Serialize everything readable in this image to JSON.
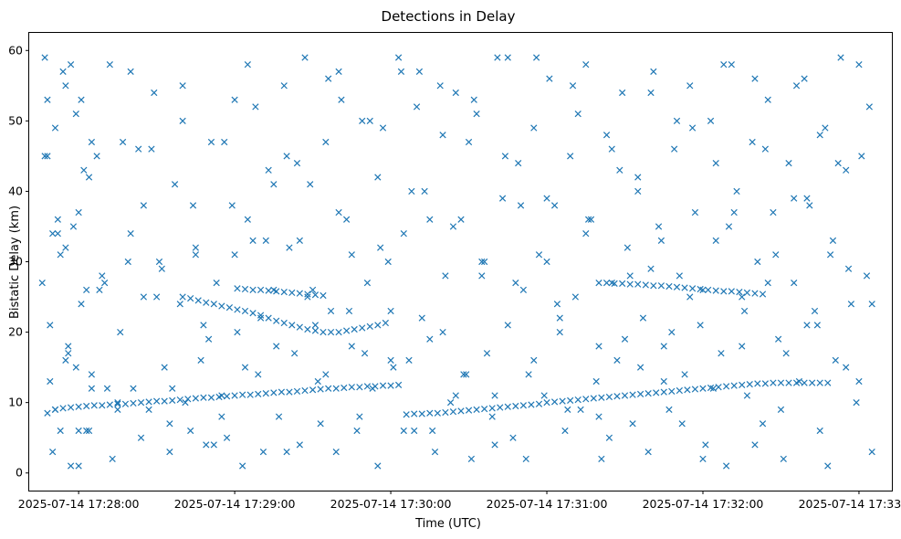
{
  "chart_data": {
    "type": "scatter",
    "title": "Detections in Delay",
    "xlabel": "Time (UTC)",
    "ylabel": "Bistatic Delay (km)",
    "marker": "x",
    "color": "#1f77b4",
    "x_unit": "seconds after 2025-07-14 17:28:00 UTC",
    "xlim": [
      -19,
      313
    ],
    "ylim": [
      -2.5,
      62.5
    ],
    "x_ticks": [
      {
        "value": 0,
        "label": "2025-07-14 17:28:00"
      },
      {
        "value": 60,
        "label": "2025-07-14 17:29:00"
      },
      {
        "value": 120,
        "label": "2025-07-14 17:30:00"
      },
      {
        "value": 180,
        "label": "2025-07-14 17:31:00"
      },
      {
        "value": 240,
        "label": "2025-07-14 17:32:00"
      },
      {
        "value": 300,
        "label": "2025-07-14 17:33:00"
      }
    ],
    "y_ticks": [
      {
        "value": 0,
        "label": "0"
      },
      {
        "value": 10,
        "label": "10"
      },
      {
        "value": 20,
        "label": "20"
      },
      {
        "value": 30,
        "label": "30"
      },
      {
        "value": 40,
        "label": "40"
      },
      {
        "value": 50,
        "label": "50"
      },
      {
        "value": 60,
        "label": "60"
      }
    ],
    "track_series": [
      {
        "name": "low-delay track segment 1",
        "x": [
          -12,
          -9,
          -6,
          -3,
          0,
          3,
          6,
          9,
          12,
          15,
          18,
          21,
          24,
          27,
          30,
          33,
          36,
          39,
          42,
          45,
          48,
          51,
          54,
          57,
          60,
          63,
          66,
          69,
          72,
          75,
          78,
          81,
          84,
          87,
          90,
          93,
          96,
          99,
          102,
          105,
          108,
          111,
          114,
          117,
          120,
          123,
          126,
          129,
          132,
          135,
          138,
          141,
          144,
          147,
          150,
          153,
          156,
          159,
          162,
          165,
          168,
          171,
          174,
          177,
          180,
          183,
          186,
          189,
          192,
          195,
          198,
          201,
          204,
          207,
          210,
          213,
          216,
          219,
          222,
          225,
          228,
          231,
          234,
          237,
          240,
          243,
          246,
          249,
          252,
          255,
          258,
          261,
          264,
          267,
          270,
          273,
          276,
          279,
          282,
          285,
          288
        ],
        "y": [
          8.5,
          9.0,
          9.2,
          9.3,
          9.4,
          9.5,
          9.6,
          9.6,
          9.7,
          9.8,
          9.8,
          9.9,
          10.0,
          10.1,
          10.2,
          10.2,
          10.3,
          10.4,
          10.5,
          10.6,
          10.7,
          10.7,
          10.8,
          10.9,
          11.0,
          11.1,
          11.1,
          11.2,
          11.3,
          11.4,
          11.5,
          11.5,
          11.6,
          11.7,
          11.8,
          11.9,
          12.0,
          12.0,
          12.1,
          12.2,
          12.2,
          12.3,
          12.3,
          12.4,
          12.4,
          12.5,
          8.3,
          8.4,
          8.4,
          8.5,
          8.5,
          8.6,
          8.7,
          8.8,
          8.9,
          9.0,
          9.1,
          9.2,
          9.3,
          9.4,
          9.5,
          9.6,
          9.7,
          9.8,
          10.0,
          10.1,
          10.2,
          10.3,
          10.4,
          10.5,
          10.6,
          10.7,
          10.8,
          10.9,
          11.0,
          11.1,
          11.2,
          11.3,
          11.4,
          11.5,
          11.6,
          11.7,
          11.8,
          11.9,
          12.0,
          12.1,
          12.2,
          12.3,
          12.4,
          12.5,
          12.6,
          12.7,
          12.7,
          12.8,
          12.8,
          12.8,
          12.8,
          12.8,
          12.8,
          12.8,
          12.8
        ]
      },
      {
        "name": "upper track",
        "x": [
          40,
          43,
          46,
          49,
          52,
          55,
          58,
          61,
          64,
          67,
          70,
          73,
          76,
          79,
          82,
          85,
          88,
          91,
          94,
          97,
          100,
          103,
          106,
          109,
          112,
          115,
          118
        ],
        "y": [
          25.0,
          24.8,
          24.5,
          24.2,
          24.0,
          23.7,
          23.5,
          23.2,
          23.0,
          22.7,
          22.4,
          22.0,
          21.6,
          21.3,
          21.0,
          20.7,
          20.4,
          20.2,
          20.0,
          20.0,
          20.0,
          20.2,
          20.4,
          20.6,
          20.8,
          21.0,
          21.3
        ]
      },
      {
        "name": "mid track",
        "x": [
          61,
          64,
          67,
          70,
          73,
          76,
          79,
          82,
          85,
          88,
          91,
          94,
          200,
          203,
          206,
          209,
          212,
          215,
          218,
          221,
          224,
          227,
          230,
          233,
          236,
          239,
          242,
          245,
          248,
          251,
          254,
          257,
          260,
          263
        ],
        "y": [
          26.2,
          26.1,
          26.0,
          26.0,
          25.9,
          25.8,
          25.7,
          25.6,
          25.5,
          25.4,
          25.3,
          25.2,
          27.0,
          27.0,
          26.9,
          26.9,
          26.8,
          26.8,
          26.7,
          26.6,
          26.6,
          26.5,
          26.4,
          26.3,
          26.2,
          26.1,
          26.0,
          25.9,
          25.8,
          25.8,
          25.7,
          25.6,
          25.5,
          25.4
        ]
      }
    ],
    "scatter_x": [
      -14,
      -13,
      -12,
      -11,
      -10,
      -9,
      -8,
      -7,
      -6,
      -5,
      -4,
      -3,
      -2,
      -1,
      0,
      1,
      2,
      3,
      4,
      5,
      -13,
      -11,
      -9,
      -7,
      -5,
      -3,
      -1,
      1,
      3,
      5,
      7,
      9,
      11,
      13,
      15,
      17,
      19,
      21,
      23,
      25,
      27,
      29,
      31,
      33,
      35,
      37,
      39,
      41,
      43,
      45,
      47,
      49,
      51,
      53,
      55,
      57,
      59,
      61,
      63,
      65,
      67,
      69,
      71,
      73,
      75,
      77,
      79,
      81,
      83,
      85,
      87,
      89,
      91,
      93,
      95,
      97,
      99,
      101,
      103,
      105,
      107,
      109,
      111,
      113,
      115,
      117,
      119,
      121,
      123,
      125,
      127,
      129,
      131,
      133,
      135,
      137,
      139,
      141,
      143,
      145,
      147,
      149,
      151,
      153,
      155,
      157,
      159,
      161,
      163,
      165,
      167,
      169,
      171,
      173,
      175,
      177,
      179,
      181,
      183,
      185,
      187,
      189,
      191,
      193,
      195,
      197,
      199,
      201,
      203,
      205,
      207,
      209,
      211,
      213,
      215,
      217,
      219,
      221,
      223,
      225,
      227,
      229,
      231,
      233,
      235,
      237,
      239,
      241,
      243,
      245,
      247,
      249,
      251,
      253,
      255,
      257,
      259,
      261,
      263,
      265,
      267,
      269,
      271,
      273,
      275,
      277,
      279,
      281,
      283,
      285,
      287,
      289,
      291,
      293,
      295,
      297,
      299,
      301,
      303,
      305,
      -12,
      -8,
      -4,
      0,
      4,
      8,
      12,
      16,
      20,
      24,
      28,
      32,
      36,
      40,
      44,
      48,
      52,
      56,
      60,
      64,
      68,
      72,
      76,
      80,
      84,
      88,
      92,
      96,
      100,
      104,
      108,
      112,
      116,
      120,
      124,
      128,
      132,
      136,
      140,
      144,
      148,
      152,
      156,
      160,
      164,
      168,
      172,
      176,
      180,
      184,
      188,
      192,
      196,
      200,
      204,
      208,
      212,
      216,
      220,
      224,
      228,
      232,
      236,
      240,
      244,
      248,
      252,
      256,
      260,
      264,
      268,
      272,
      276,
      280,
      284,
      288,
      292,
      296,
      300,
      304,
      -10,
      -5,
      0,
      5,
      10,
      15,
      20,
      25,
      30,
      35,
      40,
      45,
      50,
      55,
      60,
      65,
      70,
      75,
      80,
      85,
      90,
      95,
      100,
      105,
      110,
      115,
      120,
      125,
      130,
      135,
      140,
      145,
      150,
      155,
      160,
      165,
      170,
      175,
      180,
      185,
      190,
      195,
      200,
      205,
      210,
      215,
      220,
      225,
      230,
      235,
      240,
      245,
      250,
      255,
      260,
      265,
      270,
      275,
      280,
      285,
      290,
      295,
      300,
      305
    ],
    "scatter_y": [
      27,
      59,
      45,
      13,
      3,
      49,
      36,
      31,
      57,
      32,
      18,
      1,
      35,
      15,
      37,
      53,
      43,
      26,
      6,
      12,
      45,
      21,
      9,
      6,
      55,
      58,
      51,
      24,
      6,
      14,
      45,
      28,
      12,
      2,
      9,
      47,
      30,
      12,
      46,
      25,
      9,
      54,
      30,
      15,
      7,
      41,
      24,
      10,
      6,
      31,
      16,
      4,
      47,
      27,
      11,
      5,
      38,
      20,
      1,
      58,
      33,
      14,
      3,
      43,
      26,
      8,
      55,
      32,
      17,
      4,
      59,
      41,
      21,
      7,
      47,
      23,
      3,
      53,
      36,
      18,
      6,
      50,
      27,
      12,
      1,
      49,
      30,
      15,
      59,
      34,
      16,
      6,
      57,
      40,
      19,
      3,
      55,
      28,
      10,
      54,
      36,
      14,
      2,
      51,
      30,
      17,
      8,
      59,
      39,
      21,
      5,
      44,
      26,
      14,
      49,
      31,
      11,
      56,
      38,
      20,
      6,
      45,
      25,
      9,
      58,
      36,
      13,
      2,
      48,
      27,
      16,
      54,
      32,
      7,
      42,
      22,
      3,
      57,
      35,
      18,
      9,
      46,
      28,
      14,
      55,
      37,
      21,
      4,
      50,
      33,
      17,
      1,
      58,
      40,
      25,
      11,
      47,
      30,
      7,
      53,
      37,
      19,
      2,
      44,
      27,
      13,
      56,
      38,
      23,
      6,
      49,
      31,
      16,
      59,
      43,
      24,
      10,
      45,
      28,
      3,
      53,
      34,
      17,
      1,
      42,
      26,
      58,
      20,
      34,
      5,
      46,
      29,
      12,
      55,
      38,
      21,
      4,
      47,
      31,
      15,
      52,
      33,
      18,
      3,
      44,
      25,
      13,
      56,
      37,
      23,
      8,
      50,
      32,
      16,
      57,
      40,
      22,
      6,
      48,
      35,
      14,
      53,
      30,
      11,
      45,
      27,
      2,
      59,
      39,
      24,
      9,
      51,
      36,
      18,
      5,
      43,
      28,
      15,
      54,
      33,
      20,
      7,
      49,
      26,
      12,
      58,
      37,
      23,
      4,
      46,
      31,
      17,
      55,
      39,
      21,
      1,
      44,
      29,
      13,
      52,
      34,
      16,
      6,
      47,
      27,
      10,
      57,
      38,
      25,
      3,
      50,
      32,
      19,
      8,
      53,
      36,
      22,
      41,
      45,
      33,
      26,
      14,
      57,
      31,
      17,
      42,
      23,
      6,
      52,
      36,
      20,
      11,
      47,
      28,
      4,
      59,
      38,
      16,
      30,
      22,
      55,
      34,
      8,
      46,
      19,
      40,
      29,
      13,
      50,
      25,
      2,
      44,
      35,
      18,
      56,
      27,
      9,
      39,
      21,
      48,
      33,
      15,
      58,
      24,
      7,
      43,
      37,
      12,
      51,
      29,
      3,
      45,
      26,
      54,
      32,
      19,
      41,
      10,
      47,
      22,
      35,
      60,
      28,
      14
    ]
  }
}
